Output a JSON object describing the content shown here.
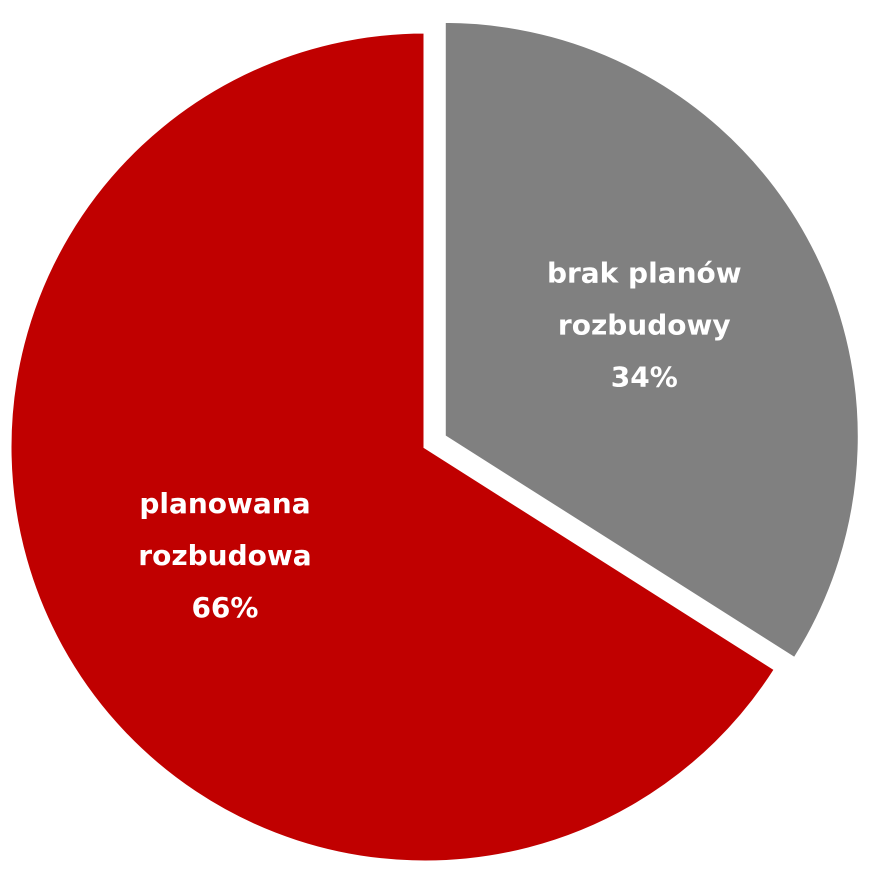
{
  "chart_data": {
    "type": "pie",
    "title": "",
    "slices": [
      {
        "label_lines": [
          "brak planów",
          "rozbudowy"
        ],
        "value": 34,
        "value_label": "34%",
        "color": "#808080",
        "exploded": true
      },
      {
        "label_lines": [
          "planowana",
          "rozbudowa"
        ],
        "value": 66,
        "value_label": "66%",
        "color": "#c00000",
        "exploded": false
      }
    ],
    "start_angle": "12 o'clock",
    "direction": "clockwise",
    "label_color": "#ffffff",
    "legend": "none"
  }
}
